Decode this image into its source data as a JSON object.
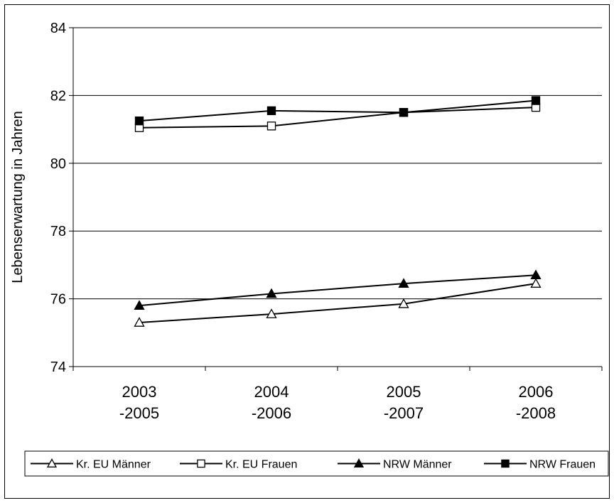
{
  "chart_data": {
    "type": "line",
    "title": "",
    "xlabel": "",
    "ylabel": "Lebenserwartung in Jahren",
    "ylim": [
      74,
      84
    ],
    "y_ticks": [
      "74",
      "76",
      "78",
      "80",
      "82",
      "84"
    ],
    "grid": true,
    "legend_position": "bottom",
    "categories": [
      [
        "2003",
        "-2005"
      ],
      [
        "2004",
        "-2006"
      ],
      [
        "2005",
        "-2007"
      ],
      [
        "2006",
        "-2008"
      ]
    ],
    "series": [
      {
        "name": "Kr. EU Männer",
        "marker": "triangle-open",
        "values": [
          75.3,
          75.55,
          75.85,
          76.45
        ]
      },
      {
        "name": "Kr. EU Frauen",
        "marker": "square-open",
        "values": [
          81.05,
          81.1,
          81.5,
          81.65
        ]
      },
      {
        "name": "NRW Männer",
        "marker": "triangle-filled",
        "values": [
          75.8,
          76.15,
          76.45,
          76.7
        ]
      },
      {
        "name": "NRW Frauen",
        "marker": "square-filled",
        "values": [
          81.25,
          81.55,
          81.5,
          81.85
        ]
      }
    ],
    "colors": {
      "line": "#000000",
      "grid": "#000000",
      "background": "#ffffff"
    }
  }
}
